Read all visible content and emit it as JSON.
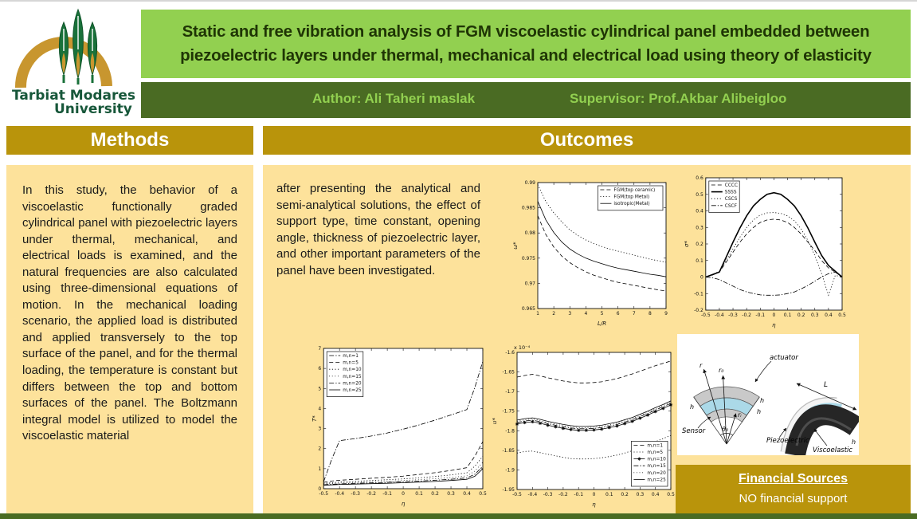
{
  "header": {
    "logo": {
      "line1": "Tarbiat Modares",
      "line2": "University"
    },
    "title_line1": "Static and free vibration analysis of FGM viscoelastic cylindrical panel embedded between",
    "title_line2": "piezoelectric layers under thermal, mechanical and electrical load using theory of elasticity",
    "author_label": "Author: Ali Taheri maslak",
    "supervisor_label": "Supervisor: Prof.Akbar Alibeigloo"
  },
  "methods": {
    "heading": "Methods",
    "body": "In this study, the behavior of a viscoelastic functionally graded cylindrical panel with piezoelectric layers under thermal, mechanical, and electrical loads is examined, and the natural frequencies are also calculated using three-dimensional equations of motion. In the mechanical loading scenario, the applied load is distributed and applied transversely to the top surface of the panel, and for the thermal loading, the temperature is constant but differs between the top and bottom surfaces of the panel. The Boltzmann integral model is utilized to model the viscoelastic material"
  },
  "outcomes": {
    "heading": "Outcomes",
    "body": "after presenting the analytical and semi-analytical solutions, the effect of support type, time constant, opening angle, thickness of piezoelectric layer, and other important parameters of the panel have been investigated."
  },
  "financial": {
    "heading": "Financial Sources",
    "body": "NO financial support"
  },
  "diagram": {
    "labels": {
      "r": "r",
      "ro": "r₀",
      "ri": "rᵢ",
      "theta": "θ₀",
      "actuator": "actuator",
      "sensor": "Sensor",
      "h_left": "h",
      "h_outer": "h",
      "h_inner": "h",
      "L": "L",
      "piezoelectric": "Piezoelectric",
      "viscoelastic": "Viscoelastic",
      "h_shell": "h"
    }
  },
  "colors": {
    "light_green": "#92D050",
    "dark_green": "#4A6B23",
    "gold": "#B9940B",
    "tan_panel": "#FDE29B",
    "title_text": "#1F3505",
    "logo_gold": "#C8962F",
    "logo_green": "#19713A",
    "diagram_blue": "#ABD9E8"
  },
  "chart_data": [
    {
      "id": "c1",
      "type": "line",
      "title": "",
      "xlabel": "L/R",
      "ylabel": "ω*",
      "xlim": [
        1,
        9
      ],
      "ylim": [
        0.965,
        0.99
      ],
      "xticks": [
        1,
        2,
        3,
        4,
        5,
        6,
        7,
        8,
        9
      ],
      "yticks": [
        0.965,
        0.97,
        0.975,
        0.98,
        0.985,
        0.99
      ],
      "legend_position": "top-right",
      "series": [
        {
          "name": "FGM(top ceramic)",
          "style": "dashed",
          "x": [
            1,
            1.5,
            2,
            2.5,
            3,
            3.5,
            4,
            4.5,
            5,
            5.5,
            6,
            6.5,
            7,
            7.5,
            8,
            8.5,
            9
          ],
          "y": [
            0.9834,
            0.9797,
            0.9772,
            0.9754,
            0.9741,
            0.9731,
            0.9723,
            0.9716,
            0.9711,
            0.9706,
            0.9702,
            0.9699,
            0.9696,
            0.9693,
            0.969,
            0.9687,
            0.9685
          ]
        },
        {
          "name": "FGM(top Metal)",
          "style": "dotted",
          "x": [
            1,
            1.5,
            2,
            2.5,
            3,
            3.5,
            4,
            4.5,
            5,
            5.5,
            6,
            6.5,
            7,
            7.5,
            8,
            8.5,
            9
          ],
          "y": [
            0.9896,
            0.9862,
            0.984,
            0.9822,
            0.9806,
            0.9795,
            0.9786,
            0.9779,
            0.9773,
            0.9768,
            0.9764,
            0.976,
            0.9756,
            0.9752,
            0.9748,
            0.9745,
            0.9742
          ]
        },
        {
          "name": "isotropic(Metal)",
          "style": "solid",
          "x": [
            1,
            1.5,
            2,
            2.5,
            3,
            3.5,
            4,
            4.5,
            5,
            5.5,
            6,
            6.5,
            7,
            7.5,
            8,
            8.5,
            9
          ],
          "y": [
            0.9863,
            0.9826,
            0.9801,
            0.9782,
            0.9768,
            0.9758,
            0.975,
            0.9744,
            0.9739,
            0.9734,
            0.973,
            0.9727,
            0.9724,
            0.9721,
            0.9718,
            0.9716,
            0.9713
          ]
        }
      ]
    },
    {
      "id": "c2",
      "type": "line",
      "title": "",
      "xlabel": "η",
      "ylabel": "σ*",
      "xlim": [
        -0.5,
        0.5
      ],
      "ylim": [
        -0.2,
        0.6
      ],
      "xticks": [
        -0.5,
        -0.4,
        -0.3,
        -0.2,
        -0.1,
        0,
        0.1,
        0.2,
        0.3,
        0.4,
        0.5
      ],
      "yticks": [
        -0.2,
        -0.1,
        0,
        0.1,
        0.2,
        0.3,
        0.4,
        0.5,
        0.6
      ],
      "legend_position": "top-left",
      "series": [
        {
          "name": "CCCC",
          "style": "dashed",
          "x": [
            -0.5,
            -0.45,
            -0.4,
            -0.35,
            -0.3,
            -0.25,
            -0.2,
            -0.15,
            -0.1,
            -0.05,
            0,
            0.05,
            0.1,
            0.15,
            0.2,
            0.25,
            0.3,
            0.35,
            0.4,
            0.45,
            0.5
          ],
          "y": [
            0,
            0.012,
            0.03,
            0.09,
            0.15,
            0.21,
            0.26,
            0.3,
            0.33,
            0.345,
            0.35,
            0.345,
            0.33,
            0.3,
            0.26,
            0.21,
            0.16,
            0.1,
            0.055,
            0.03,
            0
          ]
        },
        {
          "name": "SSSS",
          "style": "solid",
          "width": 1.6,
          "x": [
            -0.5,
            -0.45,
            -0.4,
            -0.35,
            -0.3,
            -0.25,
            -0.2,
            -0.15,
            -0.1,
            -0.05,
            0,
            0.05,
            0.1,
            0.15,
            0.2,
            0.25,
            0.3,
            0.35,
            0.4,
            0.45,
            0.5
          ],
          "y": [
            0,
            0.015,
            0.03,
            0.12,
            0.21,
            0.295,
            0.37,
            0.43,
            0.47,
            0.5,
            0.51,
            0.5,
            0.47,
            0.43,
            0.37,
            0.295,
            0.21,
            0.13,
            0.07,
            0.035,
            0
          ]
        },
        {
          "name": "CSCS",
          "style": "dotted",
          "x": [
            -0.5,
            -0.45,
            -0.4,
            -0.35,
            -0.3,
            -0.25,
            -0.2,
            -0.15,
            -0.1,
            -0.05,
            0,
            0.05,
            0.1,
            0.15,
            0.2,
            0.25,
            0.3,
            0.35,
            0.4,
            0.45,
            0.5
          ],
          "y": [
            0,
            0.015,
            0.035,
            0.1,
            0.17,
            0.24,
            0.3,
            0.345,
            0.375,
            0.388,
            0.39,
            0.385,
            0.37,
            0.34,
            0.29,
            0.22,
            0.13,
            0.02,
            -0.11,
            0.01,
            0
          ]
        },
        {
          "name": "CSCF",
          "style": "dashdot",
          "x": [
            -0.5,
            -0.45,
            -0.4,
            -0.35,
            -0.3,
            -0.25,
            -0.2,
            -0.15,
            -0.1,
            -0.05,
            0,
            0.05,
            0.1,
            0.15,
            0.2,
            0.25,
            0.3,
            0.35,
            0.4,
            0.45,
            0.5
          ],
          "y": [
            0,
            -0.005,
            -0.015,
            -0.035,
            -0.055,
            -0.075,
            -0.09,
            -0.1,
            -0.108,
            -0.11,
            -0.11,
            -0.108,
            -0.1,
            -0.09,
            -0.072,
            -0.05,
            -0.025,
            0,
            0.02,
            0.03,
            0
          ]
        }
      ]
    },
    {
      "id": "c3",
      "type": "line",
      "title": "",
      "xlabel": "η",
      "ylabel": "T*",
      "xlim": [
        -0.5,
        0.5
      ],
      "ylim": [
        0,
        7
      ],
      "xticks": [
        -0.5,
        -0.4,
        -0.3,
        -0.2,
        -0.1,
        0,
        0.1,
        0.2,
        0.3,
        0.4,
        0.5
      ],
      "yticks": [
        0,
        1,
        2,
        3,
        4,
        5,
        6,
        7
      ],
      "legend_position": "top-left",
      "series": [
        {
          "name": "m,n=1",
          "style": "dashdot",
          "x": [
            -0.5,
            -0.45,
            -0.4,
            -0.3,
            -0.2,
            -0.1,
            0,
            0.1,
            0.2,
            0.3,
            0.4,
            0.45,
            0.5
          ],
          "y": [
            0.35,
            1.45,
            2.4,
            2.5,
            2.63,
            2.78,
            2.97,
            3.18,
            3.42,
            3.68,
            3.95,
            5.05,
            6.35
          ]
        },
        {
          "name": "m,n=5",
          "style": "dashed",
          "x": [
            -0.5,
            -0.45,
            -0.4,
            -0.3,
            -0.2,
            -0.1,
            0,
            0.1,
            0.2,
            0.3,
            0.4,
            0.45,
            0.5
          ],
          "y": [
            0.32,
            0.38,
            0.42,
            0.47,
            0.52,
            0.57,
            0.63,
            0.71,
            0.8,
            0.91,
            1.05,
            1.62,
            2.35
          ]
        },
        {
          "name": "m,n=10",
          "style": "dotted",
          "x": [
            -0.5,
            -0.45,
            -0.4,
            -0.3,
            -0.2,
            -0.1,
            0,
            0.1,
            0.2,
            0.3,
            0.4,
            0.45,
            0.5
          ],
          "y": [
            0.27,
            0.3,
            0.33,
            0.37,
            0.41,
            0.45,
            0.49,
            0.54,
            0.61,
            0.69,
            0.79,
            1.12,
            1.62
          ]
        },
        {
          "name": "m,n=15",
          "style": "finedot",
          "x": [
            -0.5,
            -0.45,
            -0.4,
            -0.3,
            -0.2,
            -0.1,
            0,
            0.1,
            0.2,
            0.3,
            0.4,
            0.45,
            0.5
          ],
          "y": [
            0.23,
            0.26,
            0.28,
            0.31,
            0.34,
            0.37,
            0.41,
            0.45,
            0.5,
            0.56,
            0.64,
            0.88,
            1.32
          ]
        },
        {
          "name": "m,n=20",
          "style": "dashdot",
          "x": [
            -0.5,
            -0.45,
            -0.4,
            -0.3,
            -0.2,
            -0.1,
            0,
            0.1,
            0.2,
            0.3,
            0.4,
            0.45,
            0.5
          ],
          "y": [
            0.2,
            0.22,
            0.24,
            0.27,
            0.29,
            0.32,
            0.35,
            0.38,
            0.42,
            0.47,
            0.54,
            0.72,
            1.12
          ]
        },
        {
          "name": "m,n=25",
          "style": "solid",
          "x": [
            -0.5,
            -0.45,
            -0.4,
            -0.3,
            -0.2,
            -0.1,
            0,
            0.1,
            0.2,
            0.3,
            0.4,
            0.45,
            0.5
          ],
          "y": [
            0.17,
            0.19,
            0.21,
            0.23,
            0.25,
            0.27,
            0.3,
            0.33,
            0.36,
            0.41,
            0.47,
            0.62,
            1.0
          ]
        }
      ]
    },
    {
      "id": "c4",
      "type": "line",
      "title": "",
      "xlabel": "η",
      "ylabel": "u*",
      "ymult": "x 10⁻⁴",
      "xlim": [
        -0.5,
        0.5
      ],
      "ylim": [
        -1.95,
        -1.6
      ],
      "xticks": [
        -0.5,
        -0.4,
        -0.3,
        -0.2,
        -0.1,
        0,
        0.1,
        0.2,
        0.3,
        0.4,
        0.5
      ],
      "yticks": [
        -1.95,
        -1.9,
        -1.85,
        -1.8,
        -1.75,
        -1.7,
        -1.65,
        -1.6
      ],
      "legend_position": "bottom-right",
      "series": [
        {
          "name": "m,n=1",
          "style": "dashed",
          "x": [
            -0.5,
            -0.45,
            -0.4,
            -0.35,
            -0.3,
            -0.25,
            -0.2,
            -0.15,
            -0.1,
            -0.05,
            0,
            0.05,
            0.1,
            0.15,
            0.2,
            0.25,
            0.3,
            0.35,
            0.4,
            0.45,
            0.5
          ],
          "y": [
            -1.663,
            -1.659,
            -1.656,
            -1.66,
            -1.665,
            -1.669,
            -1.673,
            -1.676,
            -1.678,
            -1.678,
            -1.677,
            -1.675,
            -1.671,
            -1.667,
            -1.661,
            -1.655,
            -1.648,
            -1.641,
            -1.634,
            -1.628,
            -1.622
          ]
        },
        {
          "name": "m,n=5",
          "style": "dotted",
          "x": [
            -0.5,
            -0.45,
            -0.4,
            -0.35,
            -0.3,
            -0.25,
            -0.2,
            -0.15,
            -0.1,
            -0.05,
            0,
            0.05,
            0.1,
            0.15,
            0.2,
            0.25,
            0.3,
            0.35,
            0.4,
            0.45,
            0.5
          ],
          "y": [
            -1.857,
            -1.853,
            -1.852,
            -1.856,
            -1.86,
            -1.864,
            -1.868,
            -1.871,
            -1.872,
            -1.872,
            -1.871,
            -1.869,
            -1.866,
            -1.862,
            -1.857,
            -1.851,
            -1.844,
            -1.836,
            -1.828,
            -1.82,
            -1.812
          ]
        },
        {
          "name": "m,n=10",
          "style": "solid",
          "marker": "star",
          "x": [
            -0.5,
            -0.45,
            -0.4,
            -0.35,
            -0.3,
            -0.25,
            -0.2,
            -0.15,
            -0.1,
            -0.05,
            0,
            0.05,
            0.1,
            0.15,
            0.2,
            0.25,
            0.3,
            0.35,
            0.4,
            0.45,
            0.5
          ],
          "y": [
            -1.783,
            -1.779,
            -1.777,
            -1.781,
            -1.786,
            -1.79,
            -1.794,
            -1.797,
            -1.799,
            -1.799,
            -1.798,
            -1.796,
            -1.792,
            -1.788,
            -1.782,
            -1.776,
            -1.768,
            -1.76,
            -1.751,
            -1.743,
            -1.734
          ]
        },
        {
          "name": "m,n=15",
          "style": "dashdot",
          "x": [
            -0.5,
            -0.45,
            -0.4,
            -0.35,
            -0.3,
            -0.25,
            -0.2,
            -0.15,
            -0.1,
            -0.05,
            0,
            0.05,
            0.1,
            0.15,
            0.2,
            0.25,
            0.3,
            0.35,
            0.4,
            0.45,
            0.5
          ],
          "y": [
            -1.779,
            -1.775,
            -1.773,
            -1.777,
            -1.782,
            -1.786,
            -1.79,
            -1.793,
            -1.795,
            -1.795,
            -1.794,
            -1.792,
            -1.788,
            -1.784,
            -1.778,
            -1.772,
            -1.764,
            -1.756,
            -1.747,
            -1.739,
            -1.73
          ]
        },
        {
          "name": "m,n=20",
          "style": "finedot",
          "x": [
            -0.5,
            -0.45,
            -0.4,
            -0.35,
            -0.3,
            -0.25,
            -0.2,
            -0.15,
            -0.1,
            -0.05,
            0,
            0.05,
            0.1,
            0.15,
            0.2,
            0.25,
            0.3,
            0.35,
            0.4,
            0.45,
            0.5
          ],
          "y": [
            -1.776,
            -1.772,
            -1.77,
            -1.774,
            -1.779,
            -1.783,
            -1.787,
            -1.79,
            -1.792,
            -1.792,
            -1.791,
            -1.789,
            -1.785,
            -1.781,
            -1.775,
            -1.769,
            -1.761,
            -1.753,
            -1.744,
            -1.736,
            -1.727
          ]
        },
        {
          "name": "m,n=25",
          "style": "solid",
          "x": [
            -0.5,
            -0.45,
            -0.4,
            -0.35,
            -0.3,
            -0.25,
            -0.2,
            -0.15,
            -0.1,
            -0.05,
            0,
            0.05,
            0.1,
            0.15,
            0.2,
            0.25,
            0.3,
            0.35,
            0.4,
            0.45,
            0.5
          ],
          "y": [
            -1.773,
            -1.769,
            -1.767,
            -1.771,
            -1.776,
            -1.78,
            -1.784,
            -1.787,
            -1.789,
            -1.789,
            -1.788,
            -1.786,
            -1.782,
            -1.778,
            -1.772,
            -1.766,
            -1.758,
            -1.75,
            -1.741,
            -1.733,
            -1.724
          ]
        }
      ]
    }
  ]
}
